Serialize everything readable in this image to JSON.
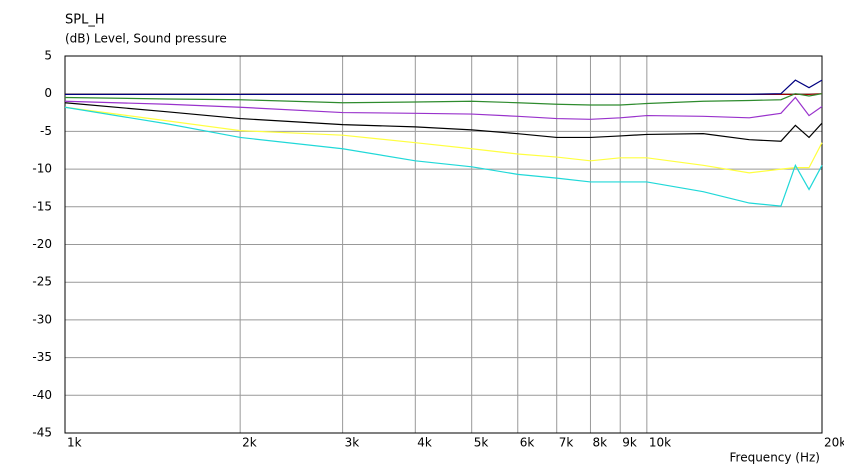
{
  "chart_data": {
    "type": "line",
    "title": "SPL_H",
    "subtitle": "(dB)  Level, Sound pressure",
    "x_label": "Frequency  (Hz)",
    "x": [
      1000,
      1500,
      2000,
      3000,
      4000,
      5000,
      6000,
      7000,
      8000,
      9000,
      10000,
      12500,
      15000,
      17000,
      18000,
      19000,
      20000
    ],
    "xscale": "log",
    "grid": true,
    "xlim": [
      1000,
      20000
    ],
    "xticks": [
      {
        "value": 1000,
        "label": "1k"
      },
      {
        "value": 2000,
        "label": "2k"
      },
      {
        "value": 3000,
        "label": "3k"
      },
      {
        "value": 4000,
        "label": "4k"
      },
      {
        "value": 5000,
        "label": "5k"
      },
      {
        "value": 6000,
        "label": "6k"
      },
      {
        "value": 7000,
        "label": "7k"
      },
      {
        "value": 8000,
        "label": "8k"
      },
      {
        "value": 9000,
        "label": "9k"
      },
      {
        "value": 10000,
        "label": "10k"
      },
      {
        "value": 20000,
        "label": "20k"
      }
    ],
    "ylim": [
      -45,
      5
    ],
    "yticks": [
      5,
      0,
      -5,
      -10,
      -15,
      -20,
      -25,
      -30,
      -35,
      -40,
      -45
    ],
    "series": [
      {
        "color": "#a00000",
        "values": [
          -0.1,
          -0.1,
          -0.1,
          -0.1,
          -0.1,
          -0.1,
          -0.1,
          -0.1,
          -0.1,
          -0.1,
          -0.1,
          -0.1,
          -0.1,
          -0.1,
          -0.1,
          -0.1,
          0
        ]
      },
      {
        "color": "#000080",
        "values": [
          -0.1,
          -0.1,
          -0.1,
          -0.1,
          -0.1,
          -0.1,
          -0.1,
          -0.1,
          -0.1,
          -0.1,
          -0.1,
          -0.1,
          -0.1,
          0,
          1.8,
          0.8,
          1.8
        ]
      },
      {
        "color": "#2e8b2e",
        "values": [
          -0.5,
          -0.7,
          -0.8,
          -1.2,
          -1.1,
          -1.0,
          -1.2,
          -1.4,
          -1.5,
          -1.5,
          -1.3,
          -1.0,
          -0.9,
          -0.8,
          0,
          -0.3,
          0
        ]
      },
      {
        "color": "#9932cc",
        "values": [
          -1,
          -1.4,
          -1.8,
          -2.5,
          -2.6,
          -2.7,
          -3.0,
          -3.3,
          -3.4,
          -3.2,
          -2.9,
          -3.0,
          -3.2,
          -2.6,
          -0.5,
          -2.9,
          -1.7
        ]
      },
      {
        "color": "#000000",
        "values": [
          -1.2,
          -2.4,
          -3.3,
          -4.1,
          -4.4,
          -4.8,
          -5.3,
          -5.8,
          -5.8,
          -5.6,
          -5.4,
          -5.3,
          -6.1,
          -6.3,
          -4.2,
          -5.8,
          -3.9
        ]
      },
      {
        "color": "#ffff40",
        "values": [
          -1.8,
          -3.6,
          -4.9,
          -5.5,
          -6.5,
          -7.3,
          -8.0,
          -8.4,
          -8.9,
          -8.5,
          -8.5,
          -9.5,
          -10.5,
          -10.0,
          -9.8,
          -9.8,
          -6.5
        ]
      },
      {
        "color": "#20d8d8",
        "values": [
          -1.8,
          -4.0,
          -5.8,
          -7.3,
          -8.9,
          -9.7,
          -10.7,
          -11.2,
          -11.7,
          -11.7,
          -11.7,
          -13.0,
          -14.5,
          -14.9,
          -9.5,
          -12.7,
          -9.5
        ]
      }
    ]
  }
}
